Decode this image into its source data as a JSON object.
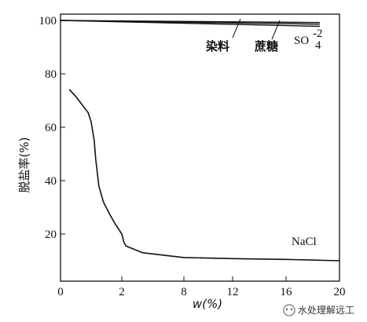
{
  "chart_data": {
    "type": "line",
    "title": "",
    "ylabel": "脱盐率(%)",
    "xlabel": "w(%)",
    "x_tick_labels": [
      "0",
      "2",
      "8",
      "12",
      "16",
      "20"
    ],
    "y_tick_labels": [
      "20",
      "40",
      "60",
      "80",
      "100"
    ],
    "ylim": [
      10,
      100
    ],
    "grid": false,
    "series": [
      {
        "name": "染料",
        "points": [
          [
            0,
            100
          ],
          [
            18.5,
            99.2
          ]
        ]
      },
      {
        "name": "蔗糖",
        "points": [
          [
            0,
            100
          ],
          [
            18.5,
            98.6
          ]
        ]
      },
      {
        "name": "SO-24",
        "points": [
          [
            0,
            100
          ],
          [
            18.5,
            97.8
          ]
        ]
      },
      {
        "name": "NaCl",
        "points": [
          [
            0.3,
            74
          ],
          [
            0.5,
            71.5
          ],
          [
            0.7,
            68.5
          ],
          [
            0.9,
            65.5
          ],
          [
            1.0,
            62
          ],
          [
            1.1,
            55
          ],
          [
            1.15,
            48
          ],
          [
            1.25,
            38
          ],
          [
            1.4,
            32
          ],
          [
            1.6,
            27.5
          ],
          [
            1.8,
            23.5
          ],
          [
            2.0,
            20
          ],
          [
            2.2,
            17
          ],
          [
            2.4,
            15.5
          ],
          [
            4,
            13
          ],
          [
            8,
            11.2
          ],
          [
            12,
            10.8
          ],
          [
            16,
            10.5
          ],
          [
            20,
            10
          ]
        ]
      }
    ],
    "annotations": {
      "dye": "染料",
      "sucrose": "蔗糖",
      "sulfate_base": "SO",
      "sulfate_sup": "-2",
      "sulfate_sub": "4",
      "nacl": "NaCl"
    }
  },
  "watermark": "水处理解远工"
}
